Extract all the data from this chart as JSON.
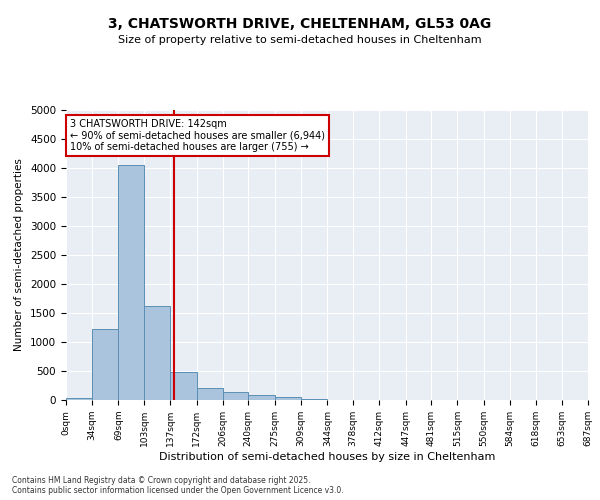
{
  "title_line1": "3, CHATSWORTH DRIVE, CHELTENHAM, GL53 0AG",
  "title_line2": "Size of property relative to semi-detached houses in Cheltenham",
  "xlabel": "Distribution of semi-detached houses by size in Cheltenham",
  "ylabel": "Number of semi-detached properties",
  "footnote1": "Contains HM Land Registry data © Crown copyright and database right 2025.",
  "footnote2": "Contains public sector information licensed under the Open Government Licence v3.0.",
  "property_size": 142,
  "annotation_title": "3 CHATSWORTH DRIVE: 142sqm",
  "annotation_line2": "← 90% of semi-detached houses are smaller (6,944)",
  "annotation_line3": "10% of semi-detached houses are larger (755) →",
  "bins": [
    0,
    34,
    69,
    103,
    137,
    172,
    206,
    240,
    275,
    309,
    344,
    378,
    412,
    447,
    481,
    515,
    550,
    584,
    618,
    653,
    687
  ],
  "bar_values": [
    30,
    1230,
    4050,
    1620,
    480,
    200,
    130,
    80,
    60,
    15,
    0,
    0,
    0,
    0,
    0,
    0,
    0,
    0,
    0,
    0
  ],
  "bar_color": "#aac4dd",
  "bar_edge_color": "#5a8fb5",
  "red_line_color": "#cc0000",
  "annotation_box_color": "#cc0000",
  "background_color": "#e8eef4",
  "ylim": [
    0,
    5000
  ],
  "yticks": [
    0,
    500,
    1000,
    1500,
    2000,
    2500,
    3000,
    3500,
    4000,
    4500,
    5000
  ]
}
